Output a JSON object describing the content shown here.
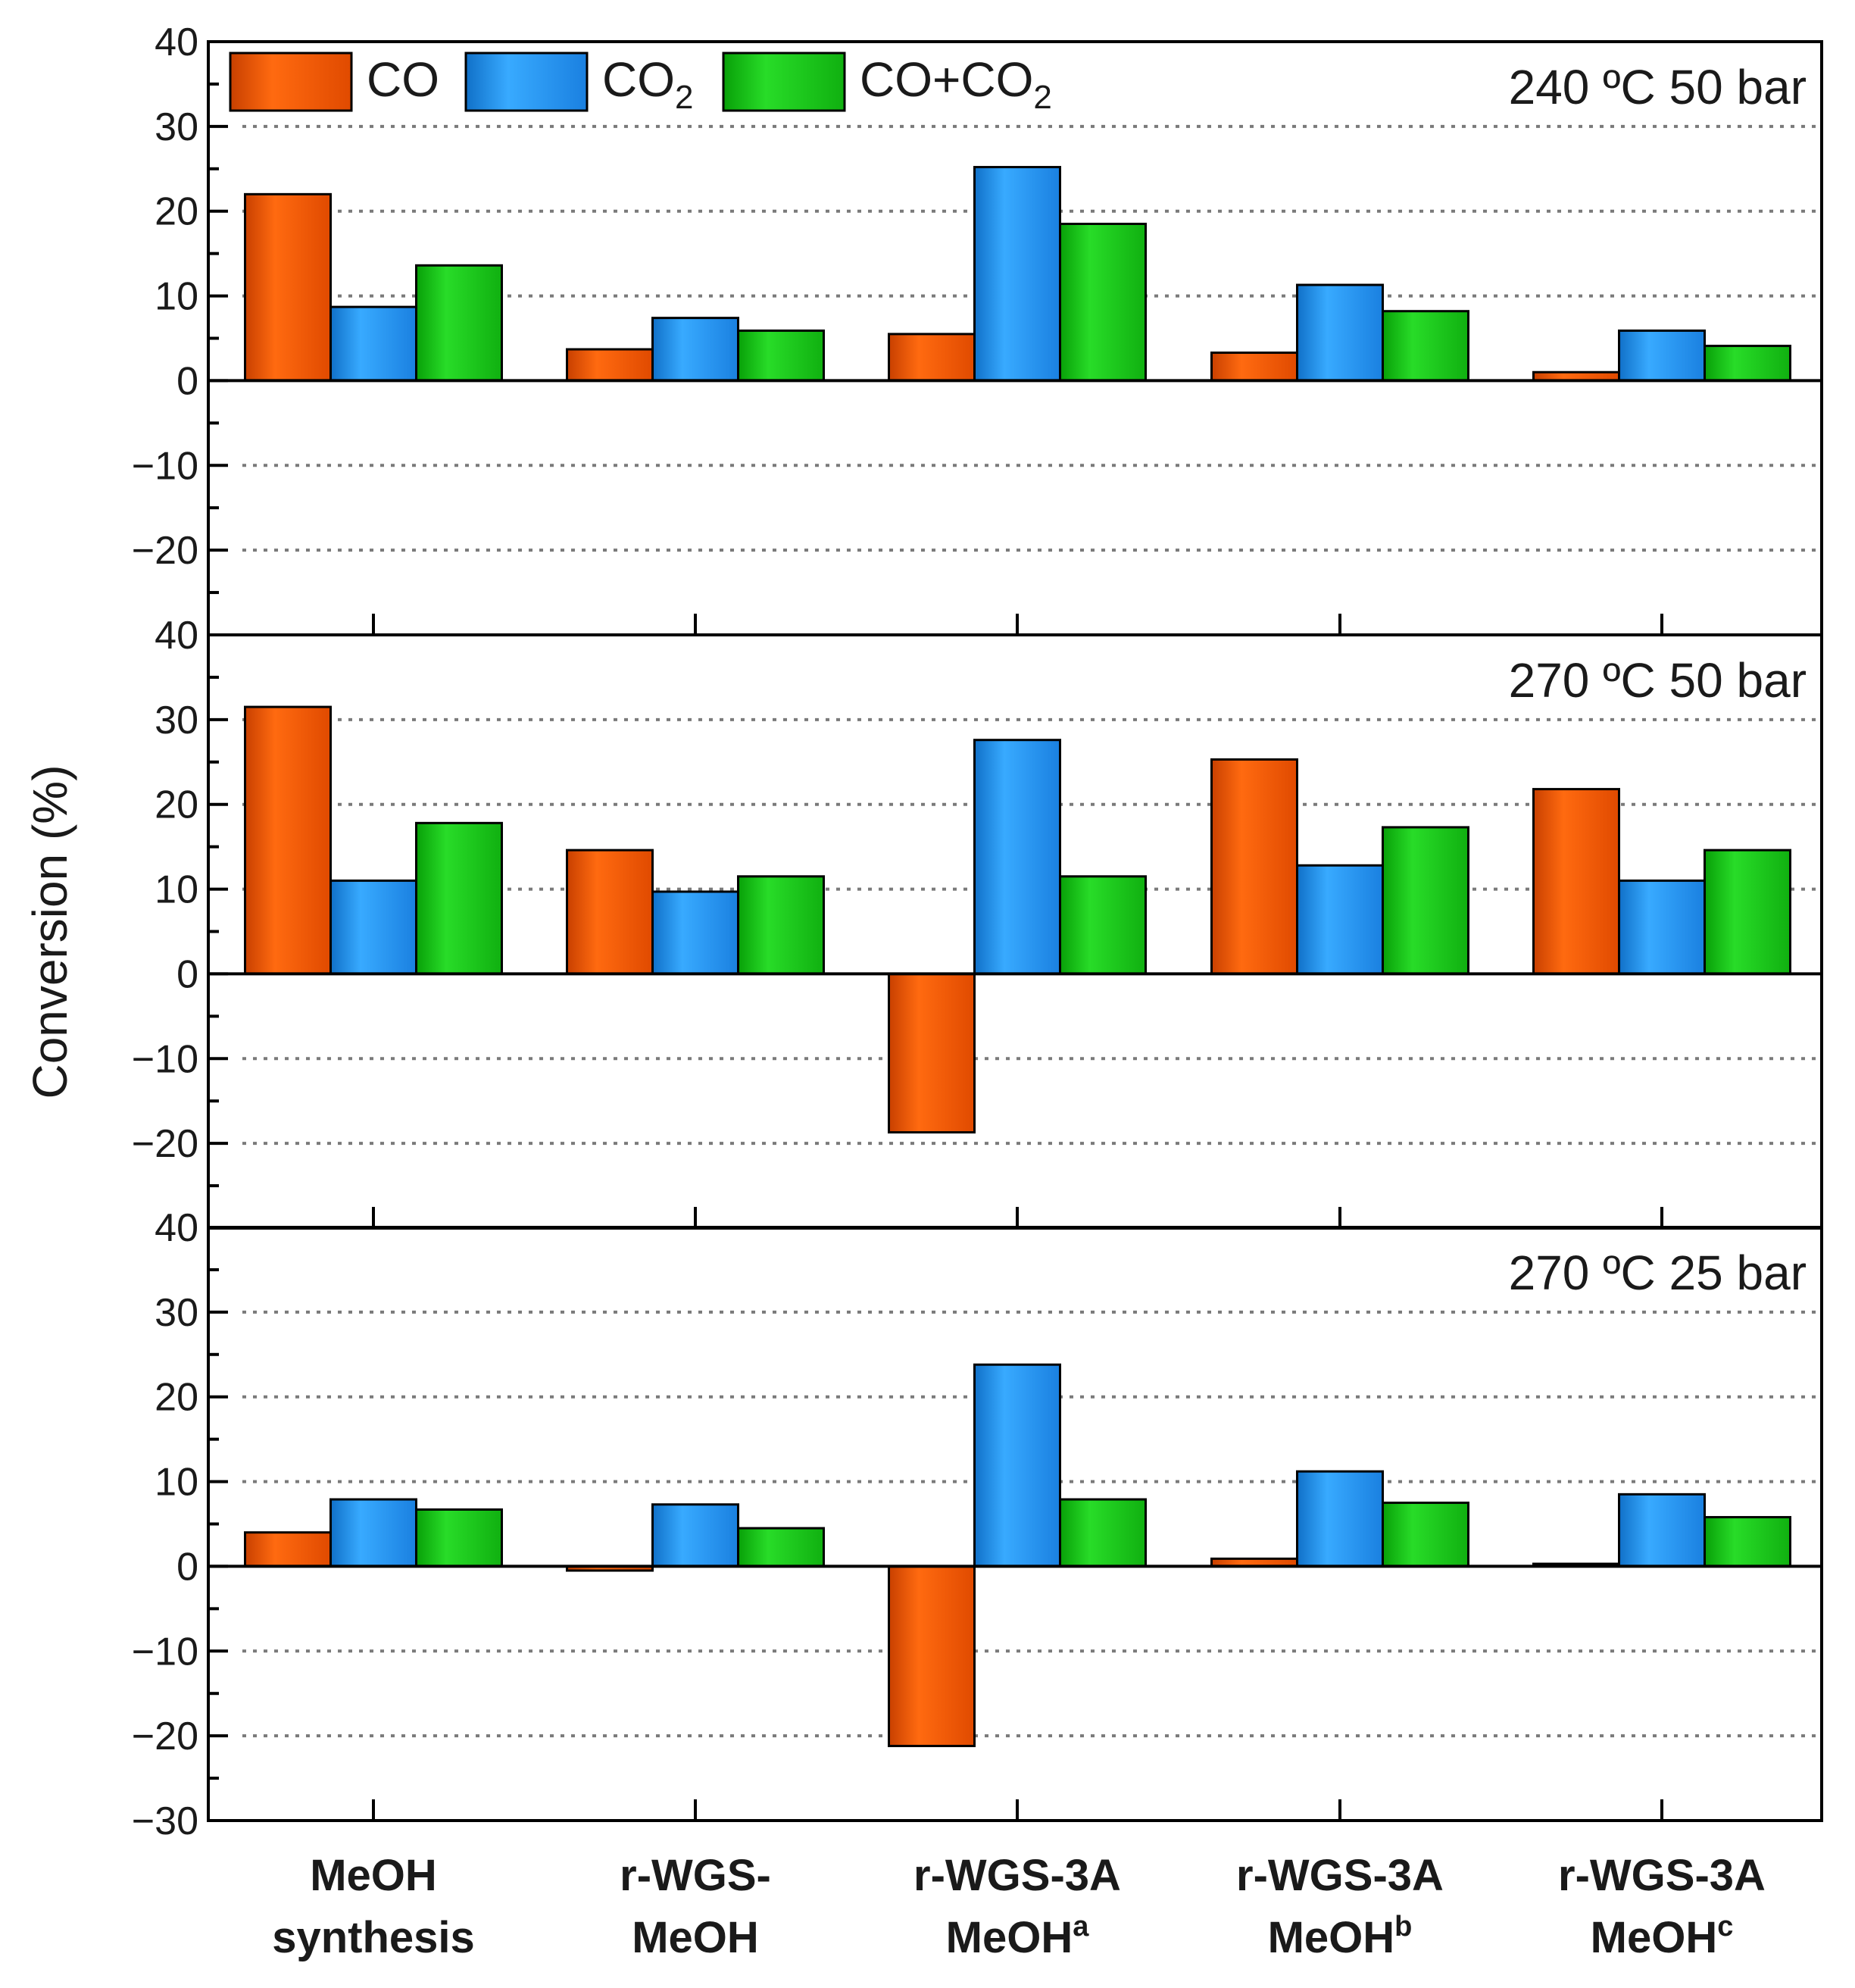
{
  "chart_data": {
    "type": "bar",
    "ylabel": "Conversion (%)",
    "categories": [
      "MeOH synthesis",
      "r-WGS-MeOH",
      "r-WGS-3A MeOHa",
      "r-WGS-3A MeOHb",
      "r-WGS-3A MeOHc"
    ],
    "category_labels": [
      {
        "line1": "MeOH",
        "line2": "synthesis",
        "sup": ""
      },
      {
        "line1": "r-WGS-",
        "line2": "MeOH",
        "sup": ""
      },
      {
        "line1": "r-WGS-3A",
        "line2": "MeOH",
        "sup": "a"
      },
      {
        "line1": "r-WGS-3A",
        "line2": "MeOH",
        "sup": "b"
      },
      {
        "line1": "r-WGS-3A",
        "line2": "MeOH",
        "sup": "c"
      }
    ],
    "legend": [
      {
        "name": "CO",
        "base": "CO",
        "sub": "",
        "color": "#ff5a00"
      },
      {
        "name": "CO2",
        "base": "CO",
        "sub": "2",
        "color": "#1f96f0"
      },
      {
        "name": "CO+CO2",
        "base": "CO+CO",
        "sub": "2",
        "color": "#14c814"
      }
    ],
    "panels": [
      {
        "title": "240 ºC 50 bar",
        "yticks": [
          40,
          30,
          20,
          10,
          0,
          -10,
          -20
        ],
        "ylim": [
          -30,
          40
        ],
        "series": [
          {
            "name": "CO",
            "values": [
              22,
              3.7,
              5.5,
              3.3,
              1.0
            ]
          },
          {
            "name": "CO2",
            "values": [
              8.7,
              7.4,
              25.2,
              11.3,
              5.9
            ]
          },
          {
            "name": "CO+CO2",
            "values": [
              13.6,
              5.9,
              18.5,
              8.2,
              4.1
            ]
          }
        ]
      },
      {
        "title": "270 ºC 50 bar",
        "yticks": [
          40,
          30,
          20,
          10,
          0,
          -10,
          -20
        ],
        "ylim": [
          -30,
          40
        ],
        "series": [
          {
            "name": "CO",
            "values": [
              31.5,
              14.6,
              -18.7,
              25.3,
              21.8
            ]
          },
          {
            "name": "CO2",
            "values": [
              11.0,
              9.7,
              27.6,
              12.8,
              11.0
            ]
          },
          {
            "name": "CO+CO2",
            "values": [
              17.8,
              11.5,
              11.5,
              17.3,
              14.6
            ]
          }
        ]
      },
      {
        "title": "270 ºC 25 bar",
        "yticks": [
          40,
          30,
          20,
          10,
          0,
          -10,
          -20,
          -30
        ],
        "ylim": [
          -30,
          40
        ],
        "series": [
          {
            "name": "CO",
            "values": [
              4.0,
              -0.5,
              -21.2,
              0.9,
              0.3
            ]
          },
          {
            "name": "CO2",
            "values": [
              7.9,
              7.3,
              23.8,
              11.2,
              8.5
            ]
          },
          {
            "name": "CO+CO2",
            "values": [
              6.7,
              4.5,
              7.9,
              7.5,
              5.8
            ]
          }
        ]
      }
    ]
  }
}
